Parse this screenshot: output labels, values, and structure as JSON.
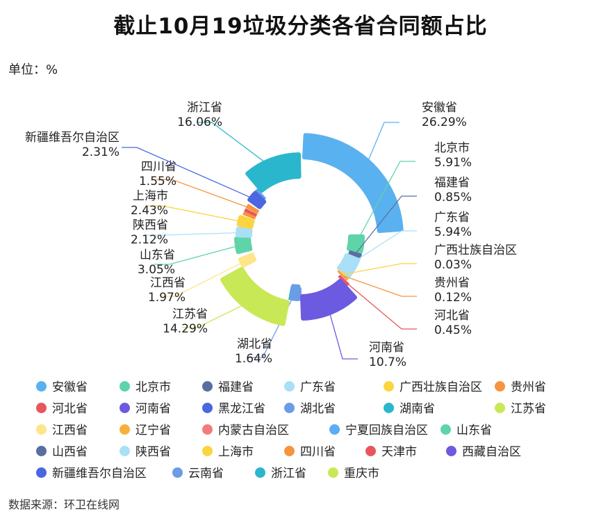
{
  "title": "截止10月19垃圾分类各省合同额占比",
  "unit_label": "单位：%",
  "source_label": "数据来源：环卫在线网",
  "chart_data": {
    "type": "pie",
    "title": "截止10月19垃圾分类各省合同额占比",
    "unit": "%",
    "donut": true,
    "rose": true,
    "categories": [
      "安徽省",
      "北京市",
      "福建省",
      "广东省",
      "广西壮族自治区",
      "贵州省",
      "河北省",
      "河南省",
      "黑龙江省",
      "湖北省",
      "湖南省",
      "江苏省",
      "江西省",
      "辽宁省",
      "内蒙古自治区",
      "宁夏回族自治区",
      "山东省",
      "山西省",
      "陕西省",
      "上海市",
      "四川省",
      "天津市",
      "西藏自治区",
      "新疆维吾尔自治区",
      "云南省",
      "浙江省",
      "重庆市"
    ],
    "colors": [
      "#5ab1ef",
      "#5fd4a8",
      "#5a6fa0",
      "#a9dff7",
      "#fcd440",
      "#f7943f",
      "#e8565c",
      "#6c5ae0",
      "#4a67e0",
      "#6b9ce6",
      "#2ab7cd",
      "#c9e855",
      "#fee58a",
      "#f7b13a",
      "#f47c7c",
      "#59aef5",
      "#5fd4a8",
      "#5a6fa0",
      "#a9dff7",
      "#fcd440",
      "#f7943f",
      "#e8565c",
      "#6c5ae0",
      "#4a67e0",
      "#6b9ce6",
      "#2ab7cd",
      "#c9e855"
    ],
    "shown": [
      {
        "name": "安徽省",
        "value": 26.29,
        "label": "26.29%"
      },
      {
        "name": "北京市",
        "value": 5.91,
        "label": "5.91%"
      },
      {
        "name": "福建省",
        "value": 0.85,
        "label": "0.85%"
      },
      {
        "name": "广东省",
        "value": 5.94,
        "label": "5.94%"
      },
      {
        "name": "广西壮族自治区",
        "value": 0.03,
        "label": "0.03%"
      },
      {
        "name": "贵州省",
        "value": 0.12,
        "label": "0.12%"
      },
      {
        "name": "河北省",
        "value": 0.45,
        "label": "0.45%"
      },
      {
        "name": "河南省",
        "value": 10.7,
        "label": "10.7%"
      },
      {
        "name": "湖北省",
        "value": 1.64,
        "label": "1.64%"
      },
      {
        "name": "江苏省",
        "value": 14.29,
        "label": "14.29%"
      },
      {
        "name": "江西省",
        "value": 1.97,
        "label": "1.97%"
      },
      {
        "name": "山东省",
        "value": 3.05,
        "label": "3.05%"
      },
      {
        "name": "陕西省",
        "value": 2.12,
        "label": "2.12%"
      },
      {
        "name": "上海市",
        "value": 2.43,
        "label": "2.43%"
      },
      {
        "name": "四川省",
        "value": 1.55,
        "label": "1.55%"
      },
      {
        "name": "新疆维吾尔自治区",
        "value": 2.31,
        "label": "2.31%"
      },
      {
        "name": "浙江省",
        "value": 16.06,
        "label": "16.06%"
      }
    ],
    "legend_position": "bottom"
  }
}
